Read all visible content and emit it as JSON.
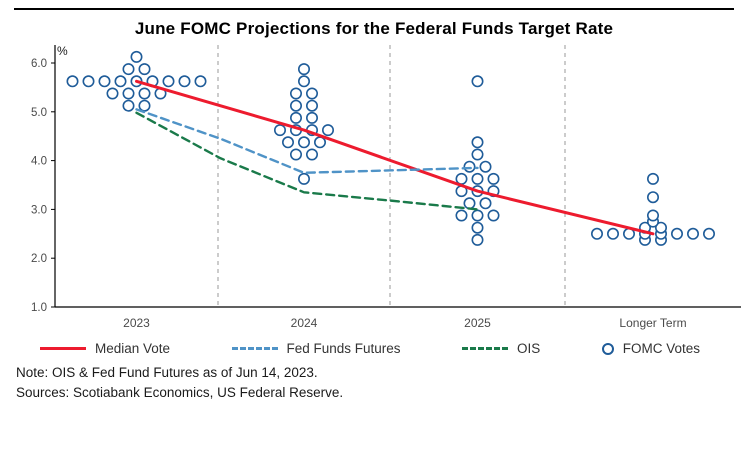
{
  "title": "June FOMC Projections for the Federal Funds Target Rate",
  "y_axis_unit_label": "%",
  "legend": [
    {
      "label": "Median Vote",
      "marker": "solid-line",
      "color": "#ed1b2e"
    },
    {
      "label": "Fed Funds Futures",
      "marker": "dashed-line",
      "color": "#4f93c7"
    },
    {
      "label": "OIS",
      "marker": "dashed-line",
      "color": "#1a7a4a"
    },
    {
      "label": "FOMC Votes",
      "marker": "open-circle",
      "color": "#1f5c99"
    }
  ],
  "notes": {
    "line1": "Note: OIS & Fed Fund Futures as of Jun 14, 2023.",
    "line2": "Sources: Scotiabank Economics, US Federal Reserve."
  },
  "chart_data": {
    "type": "scatter",
    "title": "June FOMC Projections for the Federal Funds Target Rate",
    "ylabel": "%",
    "ylim": [
      1.0,
      6.3
    ],
    "yticks": [
      1.0,
      2.0,
      3.0,
      4.0,
      5.0,
      6.0
    ],
    "categories": [
      "2023",
      "2024",
      "2025",
      "Longer Term"
    ],
    "grid": "vertical-dashed-separators",
    "legend_position": "bottom",
    "fomc_votes": {
      "color": "#1f5c99",
      "by_category": [
        [
          5.125,
          5.125,
          5.375,
          5.375,
          5.375,
          5.375,
          5.625,
          5.625,
          5.625,
          5.625,
          5.625,
          5.625,
          5.625,
          5.625,
          5.625,
          5.875,
          5.875,
          6.125
        ],
        [
          3.625,
          4.125,
          4.125,
          4.375,
          4.375,
          4.375,
          4.625,
          4.625,
          4.625,
          4.625,
          4.875,
          4.875,
          5.125,
          5.125,
          5.375,
          5.375,
          5.625,
          5.875
        ],
        [
          2.375,
          2.625,
          2.875,
          2.875,
          2.875,
          3.125,
          3.125,
          3.375,
          3.375,
          3.375,
          3.625,
          3.625,
          3.625,
          3.875,
          3.875,
          4.125,
          4.375,
          5.625
        ],
        [
          2.375,
          2.375,
          2.5,
          2.5,
          2.5,
          2.5,
          2.5,
          2.5,
          2.5,
          2.5,
          2.625,
          2.625,
          2.75,
          2.875,
          3.25,
          3.625
        ]
      ]
    },
    "lines": [
      {
        "name": "Median Vote",
        "color": "#ed1b2e",
        "style": "solid",
        "points": [
          [
            0,
            5.625
          ],
          [
            1,
            4.625
          ],
          [
            2,
            3.375
          ],
          [
            3,
            2.5
          ]
        ]
      },
      {
        "name": "Fed Funds Futures",
        "color": "#4f93c7",
        "style": "dashed",
        "points": [
          [
            0,
            5.05
          ],
          [
            0.5,
            4.45
          ],
          [
            1,
            3.75
          ],
          [
            1.5,
            3.8
          ],
          [
            2,
            3.85
          ]
        ]
      },
      {
        "name": "OIS",
        "color": "#1a7a4a",
        "style": "dashed",
        "points": [
          [
            0,
            4.98
          ],
          [
            0.5,
            4.05
          ],
          [
            1,
            3.35
          ],
          [
            1.5,
            3.18
          ],
          [
            2,
            3.0
          ]
        ]
      }
    ]
  }
}
